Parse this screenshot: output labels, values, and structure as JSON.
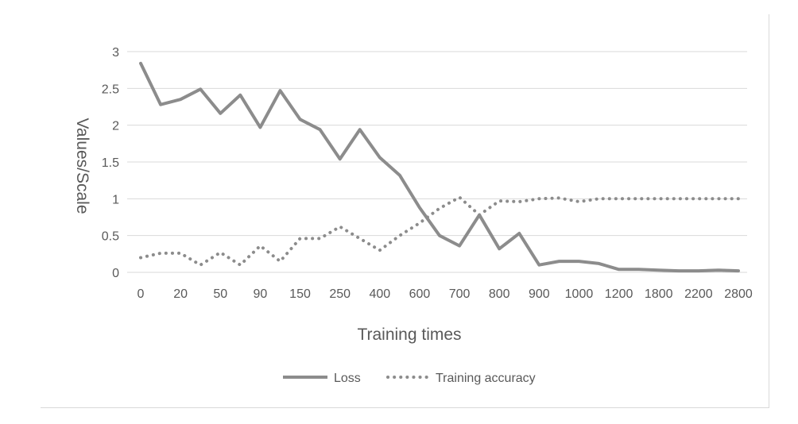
{
  "chart_data": {
    "type": "line",
    "title": "",
    "xlabel": "Training times",
    "ylabel": "Values/Scale",
    "ylim": [
      0,
      3
    ],
    "y_ticks": [
      "0",
      "0.5",
      "1",
      "1.5",
      "2",
      "2.5",
      "3"
    ],
    "x_tick_labels": [
      "0",
      "20",
      "50",
      "90",
      "150",
      "250",
      "400",
      "600",
      "700",
      "800",
      "900",
      "1000",
      "1200",
      "1800",
      "2200",
      "2800"
    ],
    "grid": true,
    "legend_position": "bottom",
    "point_count": 31,
    "series": [
      {
        "name": "Loss",
        "style": "solid",
        "color": "#8c8c8c",
        "values": [
          2.84,
          2.28,
          2.35,
          2.49,
          2.16,
          2.41,
          1.97,
          2.47,
          2.08,
          1.94,
          1.54,
          1.94,
          1.56,
          1.32,
          0.88,
          0.5,
          0.36,
          0.78,
          0.32,
          0.53,
          0.1,
          0.15,
          0.15,
          0.12,
          0.04,
          0.04,
          0.03,
          0.02,
          0.02,
          0.03,
          0.02
        ]
      },
      {
        "name": "Training accuracy",
        "style": "dotted",
        "color": "#8c8c8c",
        "values": [
          0.2,
          0.26,
          0.26,
          0.1,
          0.27,
          0.1,
          0.36,
          0.15,
          0.46,
          0.46,
          0.62,
          0.46,
          0.3,
          0.5,
          0.67,
          0.87,
          1.02,
          0.78,
          0.97,
          0.96,
          1.0,
          1.01,
          0.96,
          1.0,
          1.0,
          1.0,
          1.0,
          1.0,
          1.0,
          1.0,
          1.0
        ]
      }
    ]
  }
}
